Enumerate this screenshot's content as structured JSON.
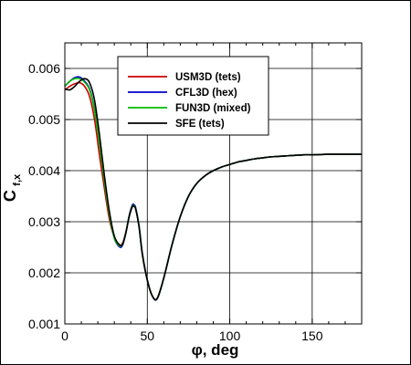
{
  "chart_data": {
    "type": "line",
    "xlabel": "φ, deg",
    "ylabel": {
      "main": "C",
      "subscript": "f,x"
    },
    "xlim": [
      0,
      180
    ],
    "ylim": [
      0.001,
      0.0065
    ],
    "xticks": [
      0,
      50,
      100,
      150
    ],
    "yticks": [
      0.001,
      0.002,
      0.003,
      0.004,
      0.005,
      0.006
    ],
    "xtick_labels": [
      "0",
      "50",
      "100",
      "150"
    ],
    "ytick_labels": [
      "0.001",
      "0.002",
      "0.003",
      "0.004",
      "0.005",
      "0.006"
    ],
    "grid": true,
    "legend_position": "top-center",
    "series": [
      {
        "name": "USM3D (tets)",
        "color": "#cc0000",
        "x": [
          0,
          3,
          6,
          9,
          12,
          15,
          18,
          21,
          24,
          27,
          30,
          33,
          35,
          37,
          39,
          41,
          42,
          43,
          45,
          47,
          50,
          53,
          56,
          60,
          65,
          70,
          75,
          80,
          85,
          90,
          95,
          100,
          105,
          110,
          115,
          120,
          125,
          130,
          135,
          140,
          145,
          150,
          160,
          170,
          180
        ],
        "y": [
          0.00558,
          0.00565,
          0.0057,
          0.00572,
          0.00565,
          0.00545,
          0.005,
          0.0043,
          0.00365,
          0.00305,
          0.0027,
          0.00255,
          0.00258,
          0.0028,
          0.0031,
          0.0033,
          0.00331,
          0.00325,
          0.0029,
          0.00235,
          0.00185,
          0.00155,
          0.0015,
          0.0019,
          0.00255,
          0.0031,
          0.0035,
          0.00375,
          0.0039,
          0.004,
          0.00407,
          0.00412,
          0.00417,
          0.0042,
          0.00423,
          0.00425,
          0.00427,
          0.00428,
          0.00429,
          0.0043,
          0.00431,
          0.00431,
          0.00432,
          0.00432,
          0.00432
        ]
      },
      {
        "name": "CFL3D (hex)",
        "color": "#0000cc",
        "x": [
          0,
          3,
          6,
          9,
          12,
          15,
          18,
          21,
          24,
          27,
          30,
          33,
          35,
          37,
          39,
          41,
          42,
          43,
          45,
          47,
          50,
          53,
          56,
          60,
          65,
          70,
          75,
          80,
          85,
          90,
          95,
          100,
          105,
          110,
          115,
          120,
          125,
          130,
          135,
          140,
          145,
          150,
          160,
          170,
          180
        ],
        "y": [
          0.00565,
          0.00575,
          0.00582,
          0.00583,
          0.00575,
          0.0056,
          0.0052,
          0.00455,
          0.0038,
          0.00315,
          0.00268,
          0.00251,
          0.00254,
          0.00278,
          0.00312,
          0.00333,
          0.00333,
          0.00327,
          0.00292,
          0.00238,
          0.00186,
          0.00155,
          0.00149,
          0.0019,
          0.00255,
          0.0031,
          0.0035,
          0.00375,
          0.0039,
          0.004,
          0.00407,
          0.00412,
          0.00417,
          0.0042,
          0.00423,
          0.00425,
          0.00427,
          0.00428,
          0.00429,
          0.0043,
          0.00431,
          0.00431,
          0.00432,
          0.00432,
          0.00432
        ]
      },
      {
        "name": "FUN3D (mixed)",
        "color": "#00bb00",
        "x": [
          0,
          3,
          6,
          9,
          12,
          15,
          18,
          21,
          24,
          27,
          30,
          33,
          35,
          37,
          39,
          41,
          42,
          43,
          45,
          47,
          50,
          53,
          56,
          60,
          65,
          70,
          75,
          80,
          85,
          90,
          95,
          100,
          105,
          110,
          115,
          120,
          125,
          130,
          135,
          140,
          145,
          150,
          160,
          170,
          180
        ],
        "y": [
          0.00565,
          0.00575,
          0.0058,
          0.0058,
          0.00573,
          0.00558,
          0.00518,
          0.00452,
          0.00378,
          0.00313,
          0.00268,
          0.00253,
          0.00256,
          0.00279,
          0.00311,
          0.00331,
          0.00331,
          0.00325,
          0.00291,
          0.00237,
          0.00186,
          0.00155,
          0.0015,
          0.0019,
          0.00255,
          0.0031,
          0.0035,
          0.00375,
          0.0039,
          0.004,
          0.00407,
          0.00412,
          0.00417,
          0.0042,
          0.00423,
          0.00425,
          0.00427,
          0.00428,
          0.00429,
          0.0043,
          0.00431,
          0.00431,
          0.00432,
          0.00432,
          0.00432
        ]
      },
      {
        "name": "SFE (tets)",
        "color": "#000000",
        "x": [
          0,
          3,
          6,
          9,
          12,
          15,
          18,
          21,
          24,
          27,
          30,
          33,
          35,
          37,
          39,
          41,
          42,
          43,
          45,
          47,
          50,
          53,
          56,
          60,
          65,
          70,
          75,
          80,
          85,
          90,
          95,
          100,
          105,
          110,
          115,
          120,
          125,
          130,
          135,
          140,
          145,
          150,
          160,
          170,
          180
        ],
        "y": [
          0.0056,
          0.00558,
          0.00565,
          0.00575,
          0.0058,
          0.00572,
          0.00538,
          0.0047,
          0.0039,
          0.0032,
          0.00272,
          0.00255,
          0.00256,
          0.00278,
          0.0031,
          0.0033,
          0.0033,
          0.00324,
          0.0029,
          0.00237,
          0.00186,
          0.00155,
          0.0015,
          0.0019,
          0.00255,
          0.0031,
          0.0035,
          0.00375,
          0.0039,
          0.004,
          0.00407,
          0.00412,
          0.00417,
          0.0042,
          0.00423,
          0.00425,
          0.00427,
          0.00428,
          0.00429,
          0.0043,
          0.00431,
          0.00431,
          0.00432,
          0.00432,
          0.00432
        ]
      }
    ]
  }
}
